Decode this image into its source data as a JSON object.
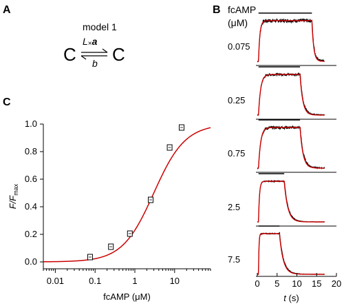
{
  "panels": {
    "a": "A",
    "b": "B",
    "c": "C"
  },
  "scheme": {
    "title": "model 1",
    "left_state": "C",
    "right_state": "C",
    "forward_rate": "L",
    "forward_mult": "×",
    "forward_a": "a",
    "backward_rate": "b"
  },
  "chart_data": [
    {
      "type": "scatter",
      "panel": "C",
      "xscale": "log",
      "xlim": [
        0.005,
        80
      ],
      "ylim": [
        -0.05,
        1.0
      ],
      "xticks": [
        0.01,
        0.1,
        1,
        10
      ],
      "xtick_labels": [
        "0.01",
        "0.1",
        "1",
        "10"
      ],
      "yticks": [
        0.0,
        0.2,
        0.4,
        0.6,
        0.8,
        1.0
      ],
      "ytick_labels": [
        "0.0",
        "0.2",
        "0.4",
        "0.6",
        "0.8",
        "1.0"
      ],
      "xlabel": "fcAMP (μM)",
      "ylabel_main": "F/F",
      "ylabel_sub": "max",
      "points": {
        "x": [
          0.075,
          0.25,
          0.75,
          2.5,
          7.5,
          15
        ],
        "y": [
          0.035,
          0.11,
          0.205,
          0.45,
          0.83,
          0.975
        ]
      },
      "fit": {
        "color": "#cc0000",
        "model": "hill",
        "k": 3.0,
        "n": 1.1,
        "baseline": 0.0
      }
    },
    {
      "type": "line",
      "panel": "B",
      "header": "fcAMP",
      "unit": "(μM)",
      "xlabel": "t (s)",
      "xlim": [
        0,
        20
      ],
      "xticks": [
        0,
        5,
        10,
        15,
        20
      ],
      "xtick_labels": [
        "0",
        "5",
        "10",
        "15",
        "20"
      ],
      "trace_color": "#000000",
      "fit_color": "#cc0000",
      "traces": [
        {
          "concentration": "0.075",
          "on": 0.3,
          "off": 13.8,
          "tau_on": 0.35,
          "tau_off": 0.45,
          "noise": 0.045
        },
        {
          "concentration": "0.25",
          "on": 0.3,
          "off": 10.8,
          "tau_on": 0.55,
          "tau_off": 0.7,
          "noise": 0.03
        },
        {
          "concentration": "0.75",
          "on": 0.3,
          "off": 10.8,
          "tau_on": 0.55,
          "tau_off": 0.75,
          "noise": 0.035
        },
        {
          "concentration": "2.5",
          "on": 0.3,
          "off": 6.8,
          "tau_on": 0.25,
          "tau_off": 0.9,
          "noise": 0.012
        },
        {
          "concentration": "7.5",
          "on": 0.3,
          "off": 5.6,
          "tau_on": 0.12,
          "tau_off": 0.95,
          "noise": 0.012
        }
      ]
    }
  ]
}
